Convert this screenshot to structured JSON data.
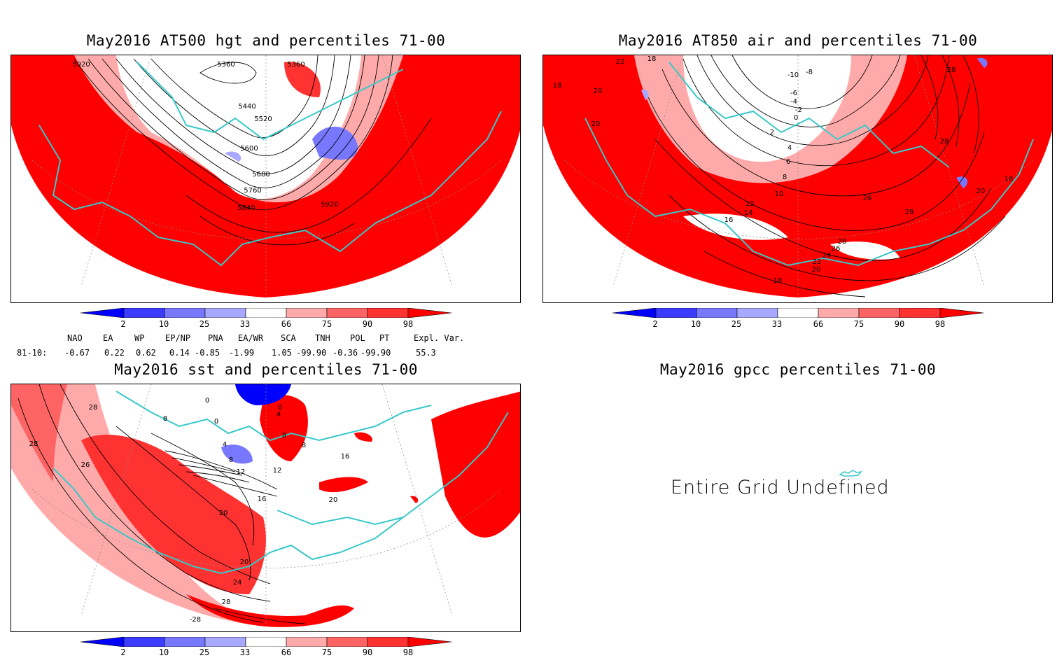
{
  "panels": {
    "hgt": {
      "title": "May2016 AT500 hgt and percentiles 71-00",
      "contour_labels": [
        "5920",
        "5360",
        "5360",
        "5440",
        "5520",
        "5600",
        "5680",
        "5760",
        "5840",
        "5920"
      ]
    },
    "air": {
      "title": "May2016 AT850 air and percentiles 71-00",
      "contour_labels": [
        "22",
        "18",
        "18",
        "20",
        "20",
        "-10",
        "-8",
        "-6",
        "-4",
        "-2",
        "0",
        "2",
        "4",
        "6",
        "8",
        "10",
        "12",
        "14",
        "16",
        "28",
        "28",
        "26",
        "28",
        "28",
        "26",
        "24",
        "22",
        "20",
        "18",
        "20",
        "18"
      ]
    },
    "sst": {
      "title": "May2016 sst and percentiles 71-00",
      "contour_labels": [
        "28",
        "28",
        "26",
        "0",
        "0",
        "8",
        "4",
        "8",
        "12",
        "12",
        "16",
        "20",
        "20",
        "24",
        "28",
        "-28",
        "4",
        "0",
        "8",
        "8",
        "16",
        "20"
      ]
    },
    "gpcc": {
      "title": "May2016 gpcc percentiles 71-00",
      "message": "Entire Grid Undefined"
    }
  },
  "colorbar": {
    "labels": [
      "2",
      "10",
      "25",
      "33",
      "66",
      "75",
      "90",
      "98"
    ],
    "colors": {
      "deep_blue": "#0000ff",
      "blue": "#3c3cff",
      "mid_blue": "#7878ff",
      "light_blue": "#a8a8ff",
      "light_red": "#ffaaaa",
      "mid_red": "#ff6464",
      "red": "#ff3232",
      "deep_red": "#ff0000",
      "coast": "#38c8c8"
    }
  },
  "indices": {
    "headers": [
      "NAO",
      "EA",
      "WP",
      "EP/NP",
      "PNA",
      "EA/WR",
      "SCA",
      "TNH",
      "POL",
      "PT",
      "Expl. Var."
    ],
    "row_label": "81-10:",
    "values": [
      "-0.67",
      "0.22",
      "0.62",
      "0.14",
      "-0.85",
      "-1.99",
      "1.05",
      "-99.90",
      "-0.36",
      "-99.90",
      "55.3"
    ]
  }
}
